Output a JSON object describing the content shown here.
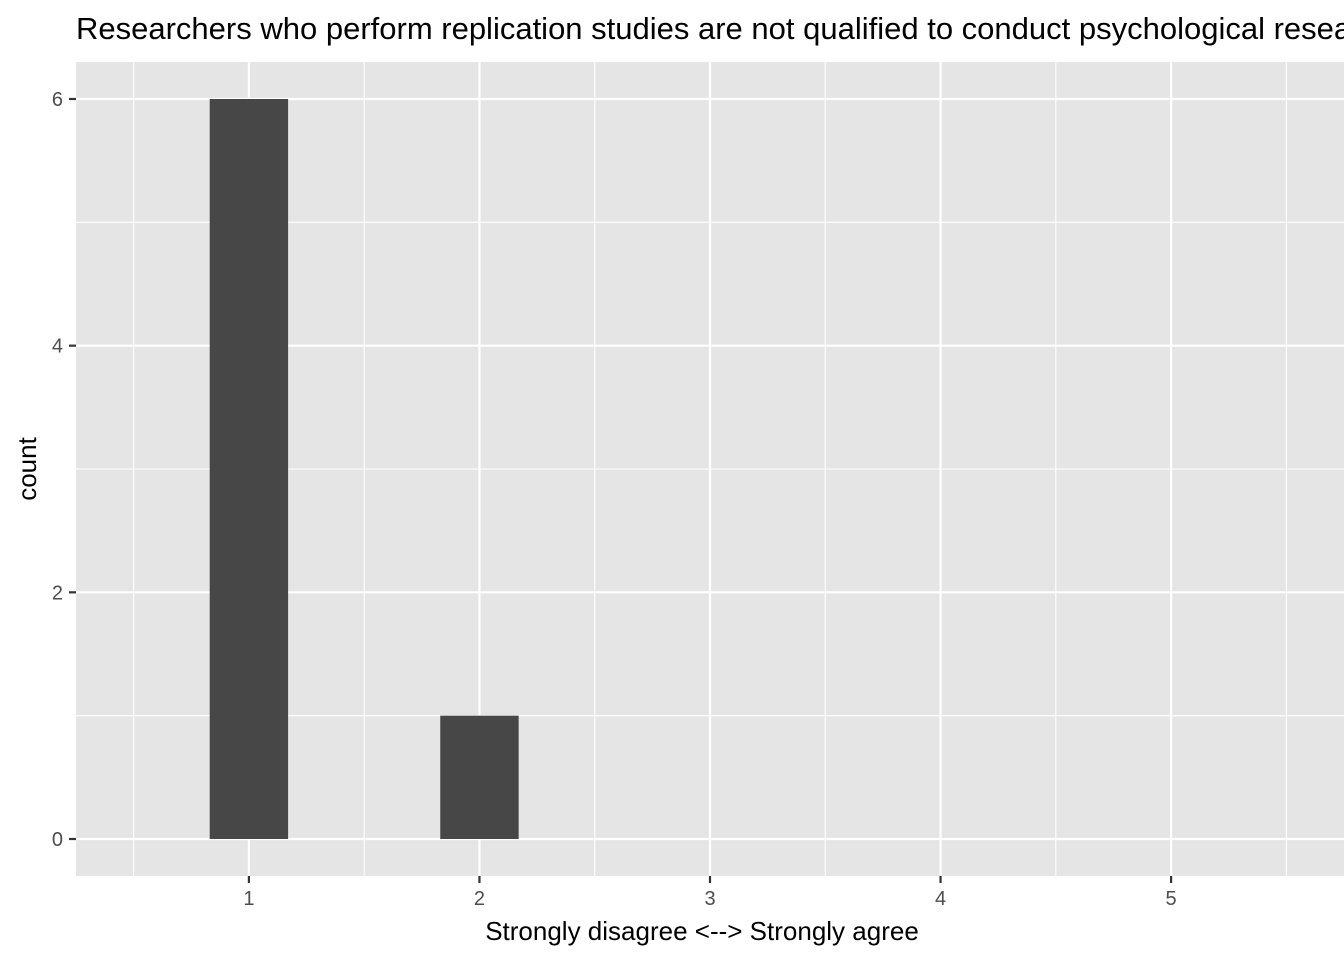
{
  "chart_data": {
    "type": "bar",
    "title": "Researchers who perform replication studies are not qualified to conduct psychological research",
    "xlabel": "Strongly disagree <--> Strongly agree",
    "ylabel": "count",
    "x": [
      1,
      2,
      3,
      4,
      5
    ],
    "values": [
      6,
      1,
      0,
      0,
      0
    ],
    "x_ticks": [
      "1",
      "2",
      "3",
      "4",
      "5"
    ],
    "y_ticks": [
      "0",
      "2",
      "4",
      "6"
    ],
    "xlim": [
      0.25,
      5.75
    ],
    "ylim": [
      -0.3,
      6.3
    ],
    "bar_width": 0.17,
    "grid": true,
    "legend": "none",
    "colors": {
      "panel": "#e5e5e5",
      "grid_major": "#ffffff",
      "bar": "#474747",
      "tick": "#333333"
    }
  }
}
